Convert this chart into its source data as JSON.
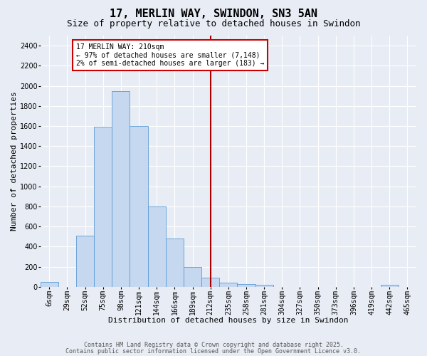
{
  "title": "17, MERLIN WAY, SWINDON, SN3 5AN",
  "subtitle": "Size of property relative to detached houses in Swindon",
  "xlabel": "Distribution of detached houses by size in Swindon",
  "ylabel": "Number of detached properties",
  "footer_lines": [
    "Contains HM Land Registry data © Crown copyright and database right 2025.",
    "Contains public sector information licensed under the Open Government Licence v3.0."
  ],
  "bin_labels": [
    "6sqm",
    "29sqm",
    "52sqm",
    "75sqm",
    "98sqm",
    "121sqm",
    "144sqm",
    "166sqm",
    "189sqm",
    "212sqm",
    "235sqm",
    "258sqm",
    "281sqm",
    "304sqm",
    "327sqm",
    "350sqm",
    "373sqm",
    "396sqm",
    "419sqm",
    "442sqm",
    "465sqm"
  ],
  "bar_values": [
    50,
    0,
    510,
    1590,
    1950,
    1600,
    800,
    480,
    200,
    90,
    40,
    25,
    18,
    0,
    0,
    0,
    0,
    0,
    0,
    20,
    0
  ],
  "bar_color": "#c5d8f0",
  "bar_edge_color": "#5b9bd5",
  "vline_x_index": 9.0,
  "vline_color": "#aa0000",
  "annotation_text": "17 MERLIN WAY: 210sqm\n← 97% of detached houses are smaller (7,148)\n2% of semi-detached houses are larger (183) →",
  "annotation_box_color": "#ffffff",
  "annotation_box_edgecolor": "#cc0000",
  "ylim": [
    0,
    2500
  ],
  "yticks": [
    0,
    200,
    400,
    600,
    800,
    1000,
    1200,
    1400,
    1600,
    1800,
    2000,
    2200,
    2400
  ],
  "background_color": "#e8edf5",
  "grid_color": "#ffffff",
  "title_fontsize": 11,
  "subtitle_fontsize": 9,
  "axis_label_fontsize": 8,
  "tick_fontsize": 7,
  "footer_fontsize": 6
}
